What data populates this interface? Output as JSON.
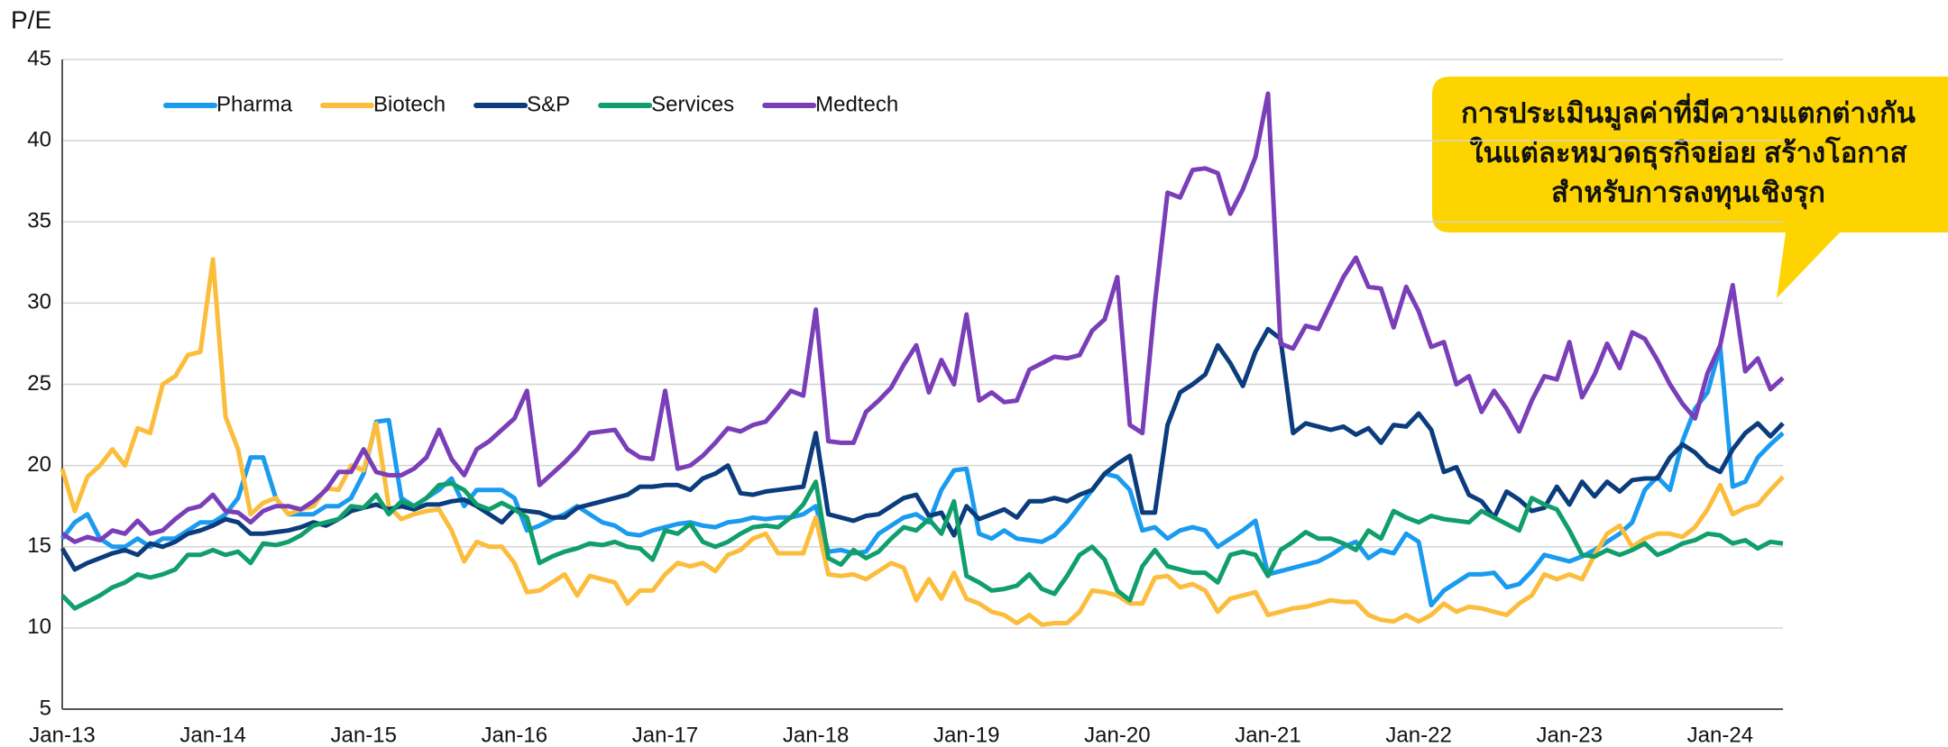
{
  "chart_data": {
    "type": "line",
    "y_label": "P/E",
    "annotation": [
      "การประเมินมูลค่าที่มีความแตกต่างกัน",
      "ในแต่ละหมวดธุรกิจย่อย สร้างโอกาส",
      "สำหรับการลงทุนเชิงรุก"
    ],
    "categories": [
      "Jan-13",
      null,
      null,
      null,
      null,
      null,
      null,
      null,
      null,
      null,
      null,
      null,
      "Jan-14",
      null,
      null,
      null,
      null,
      null,
      null,
      null,
      null,
      null,
      null,
      null,
      "Jan-15",
      null,
      null,
      null,
      null,
      null,
      null,
      null,
      null,
      null,
      null,
      null,
      "Jan-16",
      null,
      null,
      null,
      null,
      null,
      null,
      null,
      null,
      null,
      null,
      null,
      "Jan-17",
      null,
      null,
      null,
      null,
      null,
      null,
      null,
      null,
      null,
      null,
      null,
      "Jan-18",
      null,
      null,
      null,
      null,
      null,
      null,
      null,
      null,
      null,
      null,
      null,
      "Jan-19",
      null,
      null,
      null,
      null,
      null,
      null,
      null,
      null,
      null,
      null,
      null,
      "Jan-20",
      null,
      null,
      null,
      null,
      null,
      null,
      null,
      null,
      null,
      null,
      null,
      "Jan-21",
      null,
      null,
      null,
      null,
      null,
      null,
      null,
      null,
      null,
      null,
      null,
      "Jan-22",
      null,
      null,
      null,
      null,
      null,
      null,
      null,
      null,
      null,
      null,
      null,
      "Jan-23",
      null,
      null,
      null,
      null,
      null,
      null,
      null,
      null,
      null,
      null,
      null,
      "Jan-24",
      null,
      null,
      null,
      null,
      null
    ],
    "ylim": [
      5,
      45
    ],
    "yticks": [
      5,
      10,
      15,
      20,
      25,
      30,
      35,
      40,
      45
    ],
    "grid": true,
    "legend": "upper left",
    "series": [
      {
        "name": "Pharma",
        "color": "#1a9bf0",
        "values": [
          15.5,
          16.5,
          17,
          15.5,
          15,
          15,
          15.5,
          15,
          15.5,
          15.5,
          16,
          16.5,
          16.5,
          17,
          18,
          20.5,
          20.5,
          18,
          17,
          17,
          17,
          17.5,
          17.5,
          18,
          19.5,
          22.7,
          22.8,
          18,
          17.5,
          18,
          18.5,
          19.2,
          17.5,
          18.5,
          18.5,
          18.5,
          18,
          16,
          16.3,
          16.7,
          17,
          17.5,
          17,
          16.5,
          16.3,
          15.8,
          15.7,
          16,
          16.2,
          16.4,
          16.5,
          16.3,
          16.2,
          16.5,
          16.6,
          16.8,
          16.7,
          16.8,
          16.8,
          17,
          17.5,
          14.7,
          14.8,
          14.6,
          14.7,
          15.8,
          16.3,
          16.8,
          17,
          16.5,
          18.5,
          19.7,
          19.8,
          15.8,
          15.5,
          16,
          15.5,
          15.4,
          15.3,
          15.7,
          16.5,
          17.5,
          18.5,
          19.5,
          19.3,
          18.5,
          16,
          16.2,
          15.5,
          16,
          16.2,
          16,
          15,
          15.5,
          16,
          16.6,
          13.3,
          13.5,
          13.7,
          13.9,
          14.1,
          14.5,
          15,
          15.3,
          14.3,
          14.8,
          14.6,
          15.8,
          15.3,
          11.4,
          12.3,
          12.8,
          13.3,
          13.3,
          13.4,
          12.5,
          12.7,
          13.5,
          14.5,
          14.3,
          14.1,
          14.4,
          14.8,
          15.3,
          15.8,
          16.5,
          18.5,
          19.3,
          18.5,
          21.5,
          23.5,
          24.5,
          27.3,
          18.7,
          19,
          20.5,
          21.3,
          22
        ]
      },
      {
        "name": "Biotech",
        "color": "#fbbd3b",
        "values": [
          19.8,
          17.2,
          19.3,
          20,
          21,
          20,
          22.3,
          22,
          25,
          25.5,
          26.8,
          27,
          32.7,
          23,
          21,
          17,
          17.7,
          18,
          17,
          17.3,
          17.5,
          18.6,
          18.5,
          20,
          19.7,
          22.6,
          17.5,
          16.7,
          17,
          17.2,
          17.3,
          16,
          14.1,
          15.3,
          15,
          15,
          14,
          12.2,
          12.3,
          12.8,
          13.3,
          12,
          13.2,
          13,
          12.8,
          11.5,
          12.3,
          12.3,
          13.3,
          14,
          13.8,
          14,
          13.5,
          14.5,
          14.8,
          15.5,
          15.8,
          14.6,
          14.6,
          14.6,
          16.8,
          13.3,
          13.2,
          13.3,
          13,
          13.5,
          14,
          13.7,
          11.7,
          13,
          11.8,
          13.4,
          11.8,
          11.5,
          11,
          10.8,
          10.3,
          10.8,
          10.2,
          10.3,
          10.3,
          11,
          12.3,
          12.2,
          12,
          11.5,
          11.5,
          13.1,
          13.2,
          12.5,
          12.7,
          12.3,
          11,
          11.8,
          12,
          12.2,
          10.8,
          11,
          11.2,
          11.3,
          11.5,
          11.7,
          11.6,
          11.6,
          10.8,
          10.5,
          10.4,
          10.8,
          10.4,
          10.8,
          11.5,
          11,
          11.3,
          11.2,
          11,
          10.8,
          11.5,
          12,
          13.3,
          13,
          13.3,
          13,
          14.5,
          15.8,
          16.3,
          15,
          15.5,
          15.8,
          15.8,
          15.6,
          16.2,
          17.3,
          18.8,
          17,
          17.4,
          17.6,
          18.5,
          19.3
        ]
      },
      {
        "name": "S&P",
        "color": "#0b3c7c",
        "values": [
          14.9,
          13.6,
          14,
          14.3,
          14.6,
          14.8,
          14.5,
          15.2,
          15,
          15.3,
          15.8,
          16,
          16.3,
          16.7,
          16.5,
          15.8,
          15.8,
          15.9,
          16,
          16.2,
          16.5,
          16.3,
          16.7,
          17.2,
          17.4,
          17.6,
          17.3,
          17.5,
          17.3,
          17.6,
          17.6,
          17.8,
          17.9,
          17.5,
          17,
          16.5,
          17.3,
          17.2,
          17.1,
          16.8,
          16.8,
          17.4,
          17.6,
          17.8,
          18,
          18.2,
          18.7,
          18.7,
          18.8,
          18.8,
          18.5,
          19.2,
          19.5,
          20,
          18.3,
          18.2,
          18.4,
          18.5,
          18.6,
          18.7,
          22,
          17,
          16.8,
          16.6,
          16.9,
          17,
          17.5,
          18,
          18.2,
          16.9,
          17.1,
          15.7,
          17.5,
          16.7,
          17,
          17.3,
          16.8,
          17.8,
          17.8,
          18,
          17.8,
          18.2,
          18.5,
          19.5,
          20.1,
          20.6,
          17.1,
          17.1,
          22.5,
          24.5,
          25,
          25.6,
          27.4,
          26.3,
          24.9,
          27,
          28.4,
          27.8,
          22,
          22.6,
          22.4,
          22.2,
          22.4,
          21.9,
          22.3,
          21.4,
          22.5,
          22.4,
          23.2,
          22.2,
          19.6,
          19.9,
          18.2,
          17.8,
          16.8,
          18.4,
          17.9,
          17.2,
          17.4,
          18.7,
          17.6,
          19,
          18.1,
          19,
          18.4,
          19.1,
          19.2,
          19.2,
          20.5,
          21.3,
          20.8,
          20,
          19.6,
          21,
          22,
          22.6,
          21.8,
          22.6
        ]
      },
      {
        "name": "Services",
        "color": "#109f6a",
        "values": [
          12,
          11.2,
          11.6,
          12,
          12.5,
          12.8,
          13.3,
          13.1,
          13.3,
          13.6,
          14.5,
          14.5,
          14.8,
          14.5,
          14.7,
          14,
          15.2,
          15.1,
          15.3,
          15.7,
          16.3,
          16.5,
          16.7,
          17.5,
          17.4,
          18.2,
          17,
          17.8,
          17.5,
          18,
          18.8,
          18.9,
          18.5,
          17.6,
          17.3,
          17.7,
          17.3,
          16.8,
          14,
          14.4,
          14.7,
          14.9,
          15.2,
          15.1,
          15.3,
          15,
          14.9,
          14.2,
          16,
          15.8,
          16.4,
          15.3,
          15,
          15.3,
          15.8,
          16.2,
          16.3,
          16.2,
          16.8,
          17.6,
          19,
          14.3,
          13.9,
          14.8,
          14.3,
          14.7,
          15.5,
          16.2,
          16,
          16.7,
          15.8,
          17.8,
          13.2,
          12.8,
          12.3,
          12.4,
          12.6,
          13.3,
          12.4,
          12.1,
          13.2,
          14.5,
          15,
          14.2,
          12.3,
          11.7,
          13.8,
          14.8,
          13.8,
          13.6,
          13.4,
          13.4,
          12.8,
          14.5,
          14.7,
          14.5,
          13.2,
          14.8,
          15.3,
          15.9,
          15.5,
          15.5,
          15.2,
          14.8,
          16,
          15.5,
          17.2,
          16.8,
          16.5,
          16.9,
          16.7,
          16.6,
          16.5,
          17.2,
          16.8,
          16.4,
          16,
          18,
          17.6,
          17.3,
          16,
          14.5,
          14.4,
          14.8,
          14.5,
          14.8,
          15.2,
          14.5,
          14.8,
          15.2,
          15.4,
          15.8,
          15.7,
          15.2,
          15.4,
          14.9,
          15.3,
          15.2
        ]
      },
      {
        "name": "Medtech",
        "color": "#7a3eb8",
        "values": [
          15.8,
          15.3,
          15.6,
          15.4,
          16,
          15.8,
          16.6,
          15.8,
          16,
          16.7,
          17.3,
          17.5,
          18.2,
          17.2,
          17.1,
          16.5,
          17.2,
          17.5,
          17.5,
          17.3,
          17.8,
          18.5,
          19.6,
          19.6,
          21,
          19.6,
          19.4,
          19.4,
          19.8,
          20.5,
          22.2,
          20.4,
          19.4,
          21,
          21.5,
          22.2,
          22.9,
          24.6,
          18.8,
          19.5,
          20.2,
          21,
          22,
          22.1,
          22.2,
          21,
          20.5,
          20.4,
          24.6,
          19.8,
          20,
          20.6,
          21.4,
          22.3,
          22.1,
          22.5,
          22.7,
          23.6,
          24.6,
          24.3,
          29.6,
          21.5,
          21.4,
          21.4,
          23.3,
          24,
          24.8,
          26.2,
          27.4,
          24.5,
          26.5,
          25,
          29.3,
          24,
          24.5,
          23.9,
          24,
          25.9,
          26.3,
          26.7,
          26.6,
          26.8,
          28.3,
          29,
          31.6,
          22.5,
          22,
          30,
          36.8,
          36.5,
          38.2,
          38.3,
          38,
          35.5,
          37,
          39,
          42.9,
          27.5,
          27.2,
          28.6,
          28.4,
          30,
          31.6,
          32.8,
          31,
          30.9,
          28.5,
          31,
          29.5,
          27.3,
          27.6,
          25,
          25.5,
          23.3,
          24.6,
          23.5,
          22.1,
          24,
          25.5,
          25.3,
          27.6,
          24.2,
          25.6,
          27.5,
          26,
          28.2,
          27.8,
          26.5,
          25,
          23.8,
          22.9,
          25.7,
          27.4,
          31.1,
          25.8,
          26.6,
          24.7,
          25.4
        ]
      }
    ]
  }
}
